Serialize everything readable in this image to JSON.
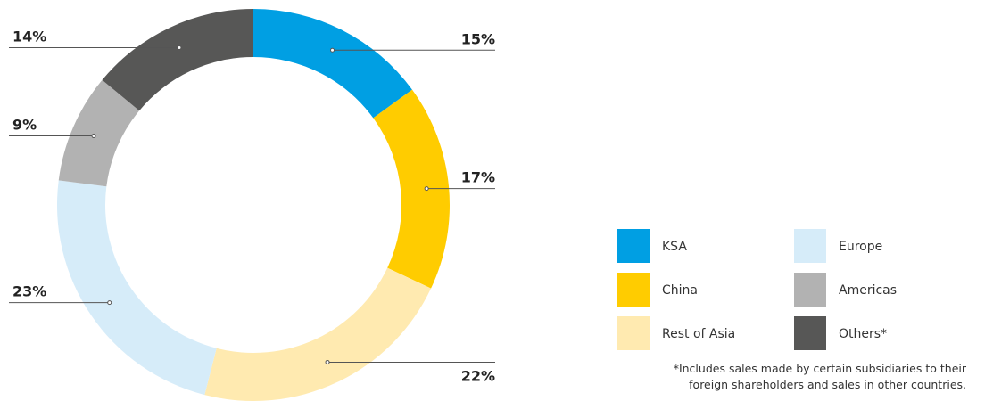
{
  "chart_data": {
    "type": "pie",
    "donut": true,
    "categories": [
      "KSA",
      "China",
      "Rest of Asia",
      "Europe",
      "Americas",
      "Others*"
    ],
    "values": [
      15,
      17,
      22,
      23,
      9,
      14
    ],
    "value_labels": [
      "15%",
      "17%",
      "22%",
      "23%",
      "9%",
      "14%"
    ],
    "colors": [
      "#009fe3",
      "#ffcc00",
      "#ffeab0",
      "#d6ecf9",
      "#b2b2b2",
      "#575756"
    ],
    "footnote": [
      "*Includes sales made by certain subsidiaries to their",
      "foreign shareholders and sales in other countries."
    ]
  }
}
